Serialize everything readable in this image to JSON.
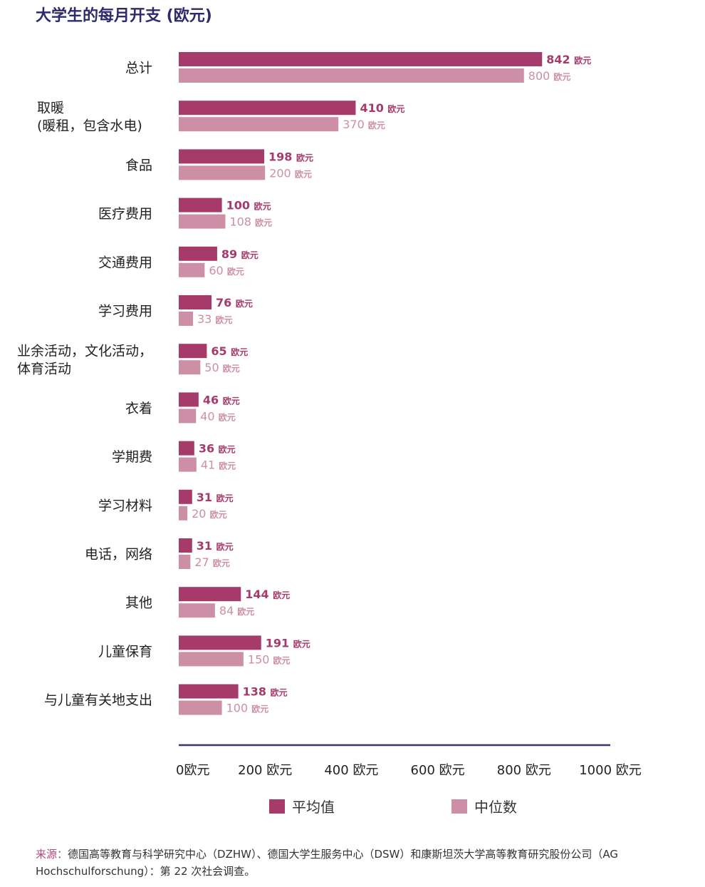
{
  "colors": {
    "mean": "#a63b6b",
    "median": "#cc8fa5",
    "axis": "#3a3570",
    "title": "#2e2a6b",
    "source_label": "#b04a7c"
  },
  "chart_data": {
    "type": "bar",
    "orientation": "horizontal",
    "title": "大学生的每月开支 (欧元)",
    "unit": "欧元",
    "categories": [
      [
        "总计"
      ],
      [
        "取暖",
        "(暖租，包含水电)"
      ],
      [
        "食品"
      ],
      [
        "医疗费用"
      ],
      [
        "交通费用"
      ],
      [
        "学习费用"
      ],
      [
        "业余活动，文化活动，",
        "体育活动"
      ],
      [
        "衣着"
      ],
      [
        "学期费"
      ],
      [
        "学习材料"
      ],
      [
        "电话，网络"
      ],
      [
        "其他"
      ],
      [
        "儿童保育"
      ],
      [
        "与儿童有关地支出"
      ]
    ],
    "series": [
      {
        "name": "平均值",
        "values": [
          842,
          410,
          198,
          100,
          89,
          76,
          65,
          46,
          36,
          31,
          31,
          144,
          191,
          138
        ]
      },
      {
        "name": "中位数",
        "values": [
          800,
          370,
          200,
          108,
          60,
          33,
          50,
          40,
          41,
          20,
          27,
          84,
          150,
          100
        ]
      }
    ],
    "xlim": [
      0,
      1000
    ],
    "xticks": [
      {
        "value": 0,
        "label": "0欧元"
      },
      {
        "value": 200,
        "label": "200 欧元"
      },
      {
        "value": 400,
        "label": "400 欧元"
      },
      {
        "value": 600,
        "label": "600 欧元"
      },
      {
        "value": 800,
        "label": "800 欧元"
      },
      {
        "value": 1000,
        "label": "1000 欧元"
      }
    ],
    "legend_position": "bottom",
    "grid": false
  },
  "source": {
    "label": "来源：",
    "text": "德国高等教育与科学研究中心（DZHW）、德国大学生服务中心（DSW）和康斯坦茨大学高等教育研究股份公司（AG Hochschulforschung）：第 22 次社会调查。"
  }
}
